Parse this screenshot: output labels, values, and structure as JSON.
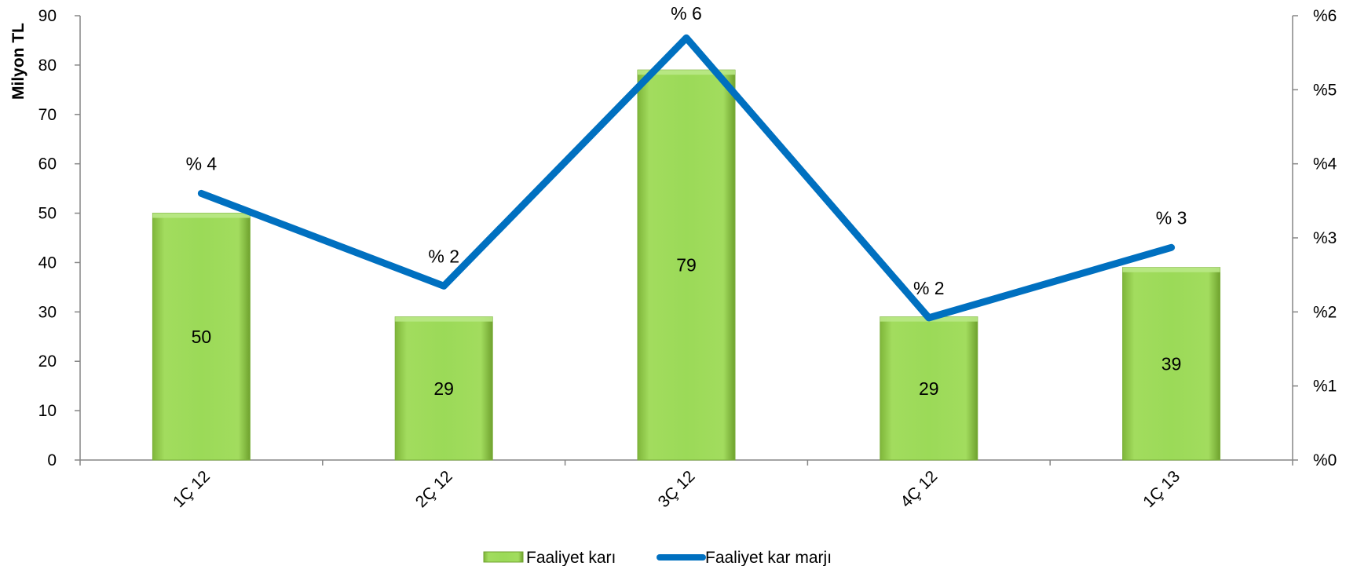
{
  "chart_data": {
    "type": "bar",
    "categories": [
      "1Ç 12",
      "2Ç 12",
      "3Ç 12",
      "4Ç 12",
      "1Ç 13"
    ],
    "series": [
      {
        "name": "Faaliyet karı",
        "type": "bar",
        "axis": "left",
        "values": [
          50,
          29,
          79,
          29,
          39
        ],
        "data_labels": [
          "50",
          "29",
          "79",
          "29",
          "39"
        ],
        "color": "#92D050"
      },
      {
        "name": "Faaliyet kar marjı",
        "type": "line",
        "axis": "right",
        "values": [
          3.6,
          2.35,
          5.7,
          1.92,
          2.87
        ],
        "data_labels": [
          "% 4",
          "% 2",
          "% 6",
          "% 2",
          "% 3"
        ],
        "color": "#0070C0"
      }
    ],
    "ylabel": "Milyon TL",
    "ylim": [
      0,
      90
    ],
    "y_ticks": [
      "0",
      "10",
      "20",
      "30",
      "40",
      "50",
      "60",
      "70",
      "80",
      "90"
    ],
    "y2lim": [
      0,
      6
    ],
    "y2_ticks": [
      "%0",
      "%1",
      "%2",
      "%3",
      "%4",
      "%5",
      "%6"
    ],
    "legend_position": "bottom",
    "grid": false
  }
}
